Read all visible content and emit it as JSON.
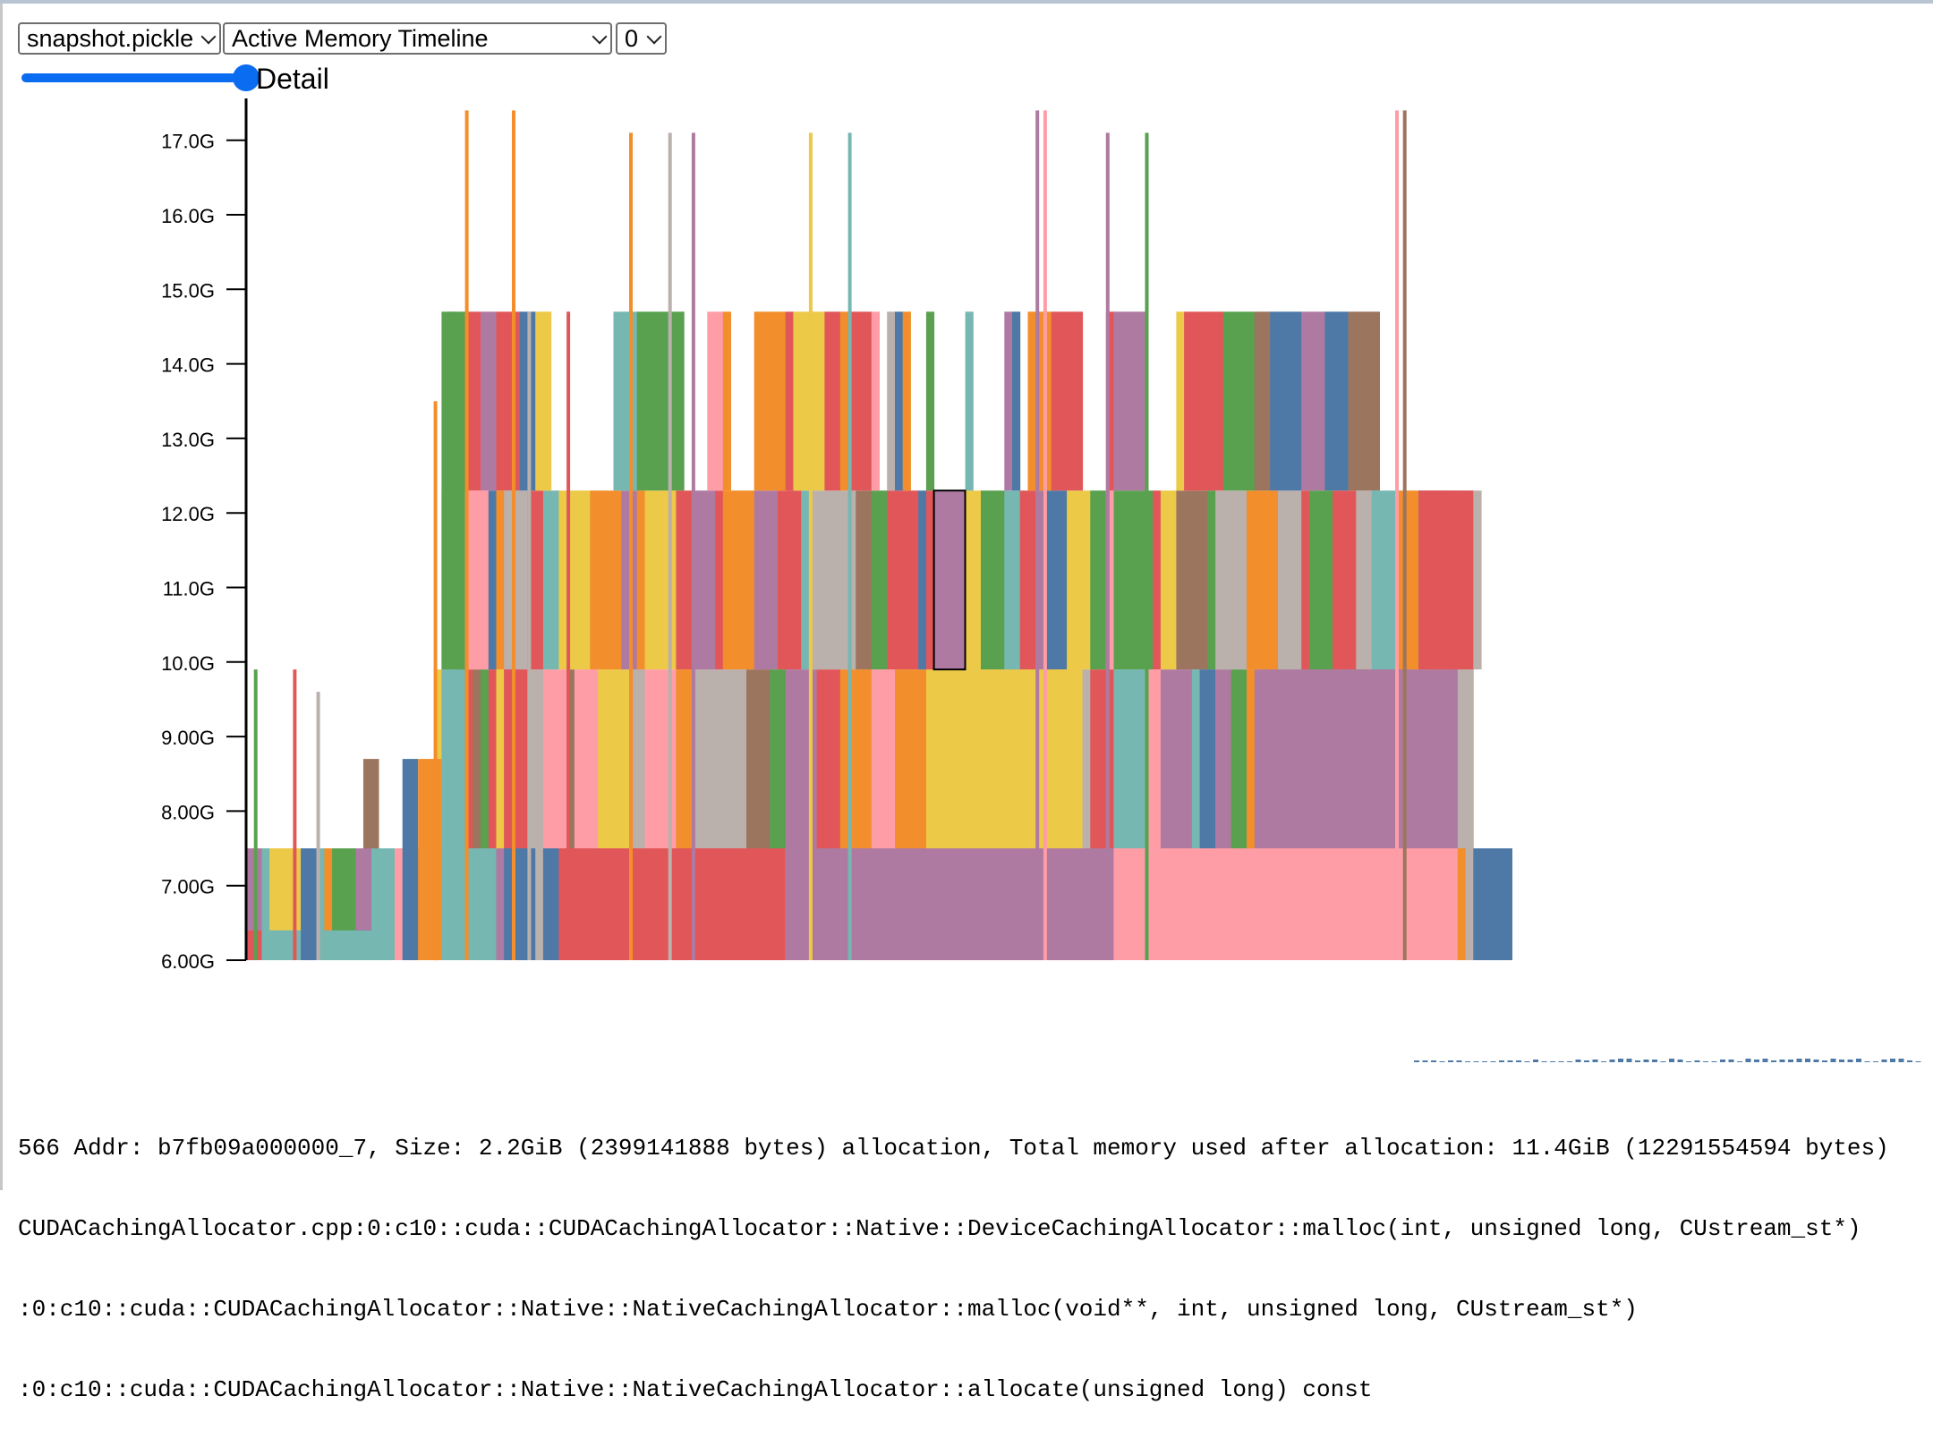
{
  "controls": {
    "snapshot_select": "snapshot.pickle",
    "view_select": "Active Memory Timeline",
    "device_select": "0",
    "slider_value_fraction": 1.0,
    "slider_label": "Detail"
  },
  "chart_data": {
    "type": "area",
    "title": "",
    "xlabel": "",
    "ylabel": "",
    "ylim": [
      5.85,
      17.4
    ],
    "y_ticks": [
      "6.00G",
      "7.00G",
      "8.00G",
      "9.00G",
      "10.0G",
      "11.0G",
      "12.0G",
      "13.0G",
      "14.0G",
      "15.0G",
      "16.0G",
      "17.0G"
    ],
    "y_tick_values": [
      6,
      7,
      8,
      9,
      10,
      11,
      12,
      13,
      14,
      15,
      16,
      17
    ],
    "palette": {
      "red": "#e15759",
      "purple": "#af7aa1",
      "pink": "#ff9da7",
      "yellow": "#edc948",
      "green": "#59a14f",
      "teal": "#76b7b2",
      "blue": "#4e79a7",
      "orange": "#f28e2b",
      "brown": "#9c755f",
      "gray": "#bab0ac"
    },
    "series_blocks": [
      {
        "name": "",
        "color": "red",
        "x": [
          0,
          3
        ],
        "y": [
          6.0,
          6.4
        ]
      },
      {
        "name": "",
        "color": "teal",
        "x": [
          2,
          10
        ],
        "y": [
          6.0,
          7.5
        ]
      },
      {
        "name": "",
        "color": "yellow",
        "x": [
          3,
          7
        ],
        "y": [
          6.4,
          7.5
        ]
      },
      {
        "name": "",
        "color": "blue",
        "x": [
          7,
          9
        ],
        "y": [
          6.0,
          7.5
        ]
      },
      {
        "name": "",
        "color": "teal",
        "x": [
          10,
          18
        ],
        "y": [
          6.0,
          6.4
        ]
      },
      {
        "name": "",
        "color": "purple",
        "x": [
          14,
          16
        ],
        "y": [
          6.4,
          7.5
        ]
      },
      {
        "name": "",
        "color": "brown",
        "x": [
          15,
          17
        ],
        "y": [
          7.5,
          8.7
        ]
      },
      {
        "name": "",
        "color": "blue",
        "x": [
          20,
          22
        ],
        "y": [
          6.0,
          8.7
        ]
      },
      {
        "name": "",
        "color": "orange",
        "x": [
          22,
          25
        ],
        "y": [
          6.0,
          8.7
        ]
      },
      {
        "name": "",
        "color": "teal",
        "x": [
          25,
          28
        ],
        "y": [
          6.0,
          9.9
        ]
      },
      {
        "name": "",
        "color": "green",
        "x": [
          25,
          28
        ],
        "y": [
          9.9,
          14.7
        ]
      },
      {
        "name": "",
        "color": "blue",
        "x": [
          33,
          36
        ],
        "y": [
          6.0,
          7.5
        ]
      },
      {
        "name": "",
        "color": "red",
        "x": [
          33,
          36
        ],
        "y": [
          7.5,
          9.9
        ]
      },
      {
        "name": "",
        "color": "red",
        "x": [
          42,
          69
        ],
        "y": [
          6.0,
          7.5
        ]
      },
      {
        "name": "",
        "color": "purple",
        "x": [
          69,
          111
        ],
        "y": [
          6.0,
          7.5
        ]
      },
      {
        "name": "",
        "color": "yellow",
        "x": [
          87,
          107
        ],
        "y": [
          7.5,
          9.9
        ]
      },
      {
        "name": "",
        "color": "purple",
        "x": [
          88,
          92
        ],
        "y": [
          9.9,
          12.3
        ]
      },
      {
        "name": "",
        "color": "pink",
        "x": [
          111,
          155
        ],
        "y": [
          6.0,
          7.5
        ]
      },
      {
        "name": "",
        "color": "purple",
        "x": [
          130,
          155
        ],
        "y": [
          7.5,
          9.9
        ]
      },
      {
        "name": "",
        "color": "red",
        "x": [
          150,
          157
        ],
        "y": [
          9.9,
          12.3
        ]
      },
      {
        "name": "",
        "color": "blue",
        "x": [
          157,
          162
        ],
        "y": [
          6.0,
          7.5
        ]
      }
    ]
  },
  "info": {
    "line1": "566 Addr: b7fb09a000000_7, Size: 2.2GiB (2399141888 bytes) allocation, Total memory used after allocation: 11.4GiB (12291554594 bytes)",
    "line2": "CUDACachingAllocator.cpp:0:c10::cuda::CUDACachingAllocator::Native::DeviceCachingAllocator::malloc(int, unsigned long, CUstream_st*)",
    "line3": ":0:c10::cuda::CUDACachingAllocator::Native::NativeCachingAllocator::malloc(void**, int, unsigned long, CUstream_st*)",
    "line4": ":0:c10::cuda::CUDACachingAllocator::Native::NativeCachingAllocator::allocate(unsigned long) const"
  }
}
